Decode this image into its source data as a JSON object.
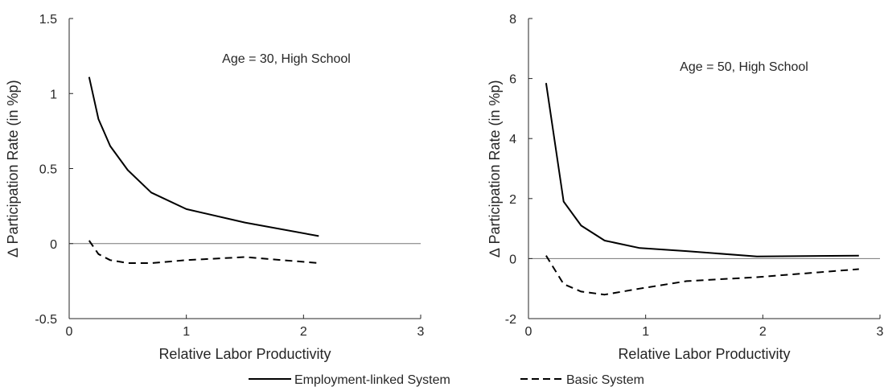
{
  "legend": {
    "items": [
      {
        "label": "Employment-linked System",
        "style": "solid"
      },
      {
        "label": "Basic System",
        "style": "dashed"
      }
    ]
  },
  "chart_data": [
    {
      "type": "line",
      "annotation": "Age = 30, High School",
      "xlabel": "Relative Labor Productivity",
      "ylabel": "∆ Participation Rate (in %p)",
      "xlim": [
        0,
        3
      ],
      "ylim": [
        -0.5,
        1.5
      ],
      "xticks": [
        "0",
        "1",
        "2",
        "3"
      ],
      "yticks": [
        "-0.5",
        "0",
        "0.5",
        "1",
        "1.5"
      ],
      "series": [
        {
          "name": "Employment-linked System",
          "style": "solid",
          "x": [
            0.17,
            0.25,
            0.35,
            0.5,
            0.7,
            1.0,
            1.5,
            2.13
          ],
          "y": [
            1.11,
            0.83,
            0.65,
            0.49,
            0.34,
            0.23,
            0.14,
            0.05
          ]
        },
        {
          "name": "Basic System",
          "style": "dashed",
          "x": [
            0.17,
            0.25,
            0.35,
            0.5,
            0.7,
            1.0,
            1.5,
            2.13
          ],
          "y": [
            0.02,
            -0.07,
            -0.11,
            -0.13,
            -0.13,
            -0.11,
            -0.09,
            -0.13
          ]
        }
      ],
      "zero_line": true
    },
    {
      "type": "line",
      "annotation": "Age = 50, High School",
      "xlabel": "Relative Labor Productivity",
      "ylabel": "∆ Participation Rate (in %p)",
      "xlim": [
        0,
        3
      ],
      "ylim": [
        -2,
        8
      ],
      "xticks": [
        "0",
        "1",
        "2",
        "3"
      ],
      "yticks": [
        "-2",
        "0",
        "2",
        "4",
        "6",
        "8"
      ],
      "series": [
        {
          "name": "Employment-linked System",
          "style": "solid",
          "x": [
            0.15,
            0.3,
            0.45,
            0.65,
            0.95,
            1.35,
            1.95,
            2.82
          ],
          "y": [
            5.85,
            1.9,
            1.1,
            0.6,
            0.35,
            0.25,
            0.07,
            0.1
          ]
        },
        {
          "name": "Basic System",
          "style": "dashed",
          "x": [
            0.15,
            0.3,
            0.45,
            0.65,
            0.95,
            1.35,
            1.95,
            2.82
          ],
          "y": [
            0.1,
            -0.85,
            -1.1,
            -1.2,
            -1.0,
            -0.75,
            -0.62,
            -0.35
          ]
        }
      ],
      "zero_line": true
    }
  ]
}
